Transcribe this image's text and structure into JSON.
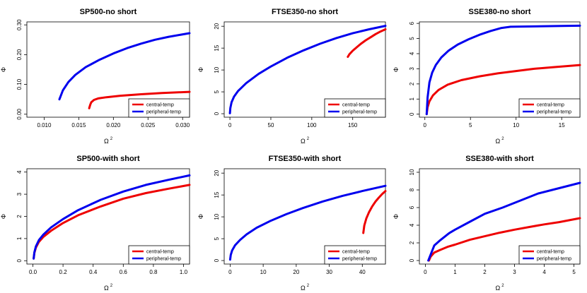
{
  "figure": {
    "rows": 2,
    "cols": 3
  },
  "chart_data": [
    {
      "type": "line",
      "title": "SP500-no short",
      "xlabel": "Ω",
      "xlabel_sup": "2",
      "ylabel": "Φ",
      "xlim": [
        0.0075,
        0.031
      ],
      "ylim": [
        -0.01,
        0.31
      ],
      "xticks": [
        0.01,
        0.015,
        0.02,
        0.025,
        0.03
      ],
      "xtick_labels": [
        "0.010",
        "0.015",
        "0.020",
        "0.025",
        "0.030"
      ],
      "yticks": [
        0.0,
        0.1,
        0.2,
        0.3
      ],
      "ytick_labels": [
        "0.00",
        "0.10",
        "0.20",
        "0.30"
      ],
      "legend": {
        "position": "bottom-right",
        "entries": [
          "central-temp",
          "peripheral-temp"
        ]
      },
      "series": [
        {
          "name": "central-temp",
          "color": "#ee0000",
          "x": [
            0.0165,
            0.01665,
            0.0168,
            0.0172,
            0.0178,
            0.019,
            0.021,
            0.024,
            0.027,
            0.031
          ],
          "y": [
            0.02,
            0.032,
            0.04,
            0.048,
            0.053,
            0.057,
            0.062,
            0.067,
            0.071,
            0.075
          ]
        },
        {
          "name": "peripheral-temp",
          "color": "#0000ee",
          "x": [
            0.0122,
            0.0127,
            0.0135,
            0.0145,
            0.016,
            0.018,
            0.02,
            0.022,
            0.024,
            0.026,
            0.028,
            0.031
          ],
          "y": [
            0.05,
            0.08,
            0.108,
            0.132,
            0.158,
            0.183,
            0.204,
            0.222,
            0.237,
            0.25,
            0.26,
            0.272
          ]
        }
      ]
    },
    {
      "type": "line",
      "title": "FTSE350-no short",
      "xlabel": "Ω",
      "xlabel_sup": "2",
      "ylabel": "Φ",
      "xlim": [
        -7,
        190
      ],
      "ylim": [
        -0.8,
        21
      ],
      "xticks": [
        0,
        50,
        100,
        150
      ],
      "xtick_labels": [
        "0",
        "50",
        "100",
        "150"
      ],
      "yticks": [
        0,
        5,
        10,
        15,
        20
      ],
      "ytick_labels": [
        "0",
        "5",
        "10",
        "15",
        "20"
      ],
      "legend": {
        "position": "bottom-right",
        "entries": [
          "central-temp",
          "peripheral-temp"
        ]
      },
      "series": [
        {
          "name": "central-temp",
          "color": "#ee0000",
          "x": [
            144,
            146,
            150,
            155,
            160,
            166,
            172,
            178,
            184,
            190
          ],
          "y": [
            13.0,
            13.6,
            14.4,
            15.2,
            16.0,
            16.8,
            17.5,
            18.2,
            18.8,
            19.3
          ]
        },
        {
          "name": "peripheral-temp",
          "color": "#0000ee",
          "x": [
            0,
            0.5,
            2,
            5,
            10,
            20,
            35,
            50,
            70,
            90,
            110,
            130,
            150,
            170,
            190
          ],
          "y": [
            0.1,
            1.3,
            2.6,
            3.9,
            5.2,
            7.0,
            9.1,
            10.8,
            12.8,
            14.5,
            16.0,
            17.3,
            18.4,
            19.3,
            20.1
          ]
        }
      ]
    },
    {
      "type": "line",
      "title": "SSE380-no short",
      "xlabel": "Ω",
      "xlabel_sup": "2",
      "ylabel": "Φ",
      "xlim": [
        -0.6,
        17
      ],
      "ylim": [
        -0.2,
        6.1
      ],
      "xticks": [
        0,
        5,
        10,
        15
      ],
      "xtick_labels": [
        "0",
        "5",
        "10",
        "15"
      ],
      "yticks": [
        0,
        1,
        2,
        3,
        4,
        5,
        6
      ],
      "ytick_labels": [
        "0",
        "1",
        "2",
        "3",
        "4",
        "5",
        "6"
      ],
      "legend": {
        "position": "bottom-right",
        "entries": [
          "central-temp",
          "peripheral-temp"
        ]
      },
      "series": [
        {
          "name": "central-temp",
          "color": "#ee0000",
          "x": [
            0.2,
            0.3,
            0.5,
            0.9,
            1.5,
            2.5,
            4,
            6,
            8,
            10,
            12,
            14,
            17
          ],
          "y": [
            0.0,
            0.45,
            0.85,
            1.25,
            1.6,
            1.95,
            2.25,
            2.5,
            2.7,
            2.85,
            3.0,
            3.1,
            3.25
          ]
        },
        {
          "name": "peripheral-temp",
          "color": "#0000ee",
          "x": [
            0.2,
            0.3,
            0.5,
            0.8,
            1.2,
            1.8,
            2.6,
            3.6,
            4.8,
            6.0,
            7.2,
            8.4,
            9.4,
            12,
            15,
            17
          ],
          "y": [
            0.0,
            1.1,
            2.1,
            2.75,
            3.25,
            3.75,
            4.2,
            4.6,
            4.95,
            5.25,
            5.5,
            5.7,
            5.78,
            5.8,
            5.83,
            5.85
          ]
        }
      ]
    },
    {
      "type": "line",
      "title": "SP500-with short",
      "xlabel": "Ω",
      "xlabel_sup": "2",
      "ylabel": "Φ",
      "xlim": [
        -0.04,
        1.04
      ],
      "ylim": [
        -0.15,
        4.15
      ],
      "xticks": [
        0.0,
        0.2,
        0.4,
        0.6,
        0.8,
        1.0
      ],
      "xtick_labels": [
        "0.0",
        "0.2",
        "0.4",
        "0.6",
        "0.8",
        "1.0"
      ],
      "yticks": [
        0,
        1,
        2,
        3,
        4
      ],
      "ytick_labels": [
        "0",
        "1",
        "2",
        "3",
        "4"
      ],
      "legend": {
        "position": "bottom-right",
        "entries": [
          "central-temp",
          "peripheral-temp"
        ]
      },
      "series": [
        {
          "name": "central-temp",
          "color": "#ee0000",
          "x": [
            0.005,
            0.01,
            0.02,
            0.04,
            0.07,
            0.12,
            0.2,
            0.3,
            0.45,
            0.6,
            0.75,
            0.9,
            1.04
          ],
          "y": [
            0.1,
            0.35,
            0.6,
            0.85,
            1.08,
            1.35,
            1.7,
            2.05,
            2.45,
            2.8,
            3.05,
            3.25,
            3.42
          ]
        },
        {
          "name": "peripheral-temp",
          "color": "#0000ee",
          "x": [
            0.005,
            0.01,
            0.02,
            0.04,
            0.07,
            0.12,
            0.2,
            0.3,
            0.45,
            0.6,
            0.75,
            0.9,
            1.04
          ],
          "y": [
            0.1,
            0.38,
            0.65,
            0.93,
            1.18,
            1.5,
            1.88,
            2.28,
            2.75,
            3.12,
            3.42,
            3.65,
            3.85
          ]
        }
      ]
    },
    {
      "type": "line",
      "title": "FTSE350-with short",
      "xlabel": "Ω",
      "xlabel_sup": "2",
      "ylabel": "Φ",
      "xlim": [
        -1.8,
        47
      ],
      "ylim": [
        -0.8,
        21
      ],
      "xticks": [
        0,
        10,
        20,
        30,
        40
      ],
      "xtick_labels": [
        "0",
        "10",
        "20",
        "30",
        "40"
      ],
      "yticks": [
        0,
        5,
        10,
        15,
        20
      ],
      "ytick_labels": [
        "0",
        "5",
        "10",
        "15",
        "20"
      ],
      "legend": {
        "position": "bottom-right",
        "entries": [
          "central-temp",
          "peripheral-temp"
        ]
      },
      "series": [
        {
          "name": "central-temp",
          "color": "#ee0000",
          "x": [
            40.3,
            40.6,
            41.2,
            42,
            43,
            44,
            45,
            46,
            47
          ],
          "y": [
            6.3,
            8.0,
            9.6,
            11.0,
            12.4,
            13.5,
            14.4,
            15.2,
            15.9
          ]
        },
        {
          "name": "peripheral-temp",
          "color": "#0000ee",
          "x": [
            0,
            0.2,
            0.6,
            1.5,
            3,
            5,
            8,
            12,
            17,
            22,
            28,
            34,
            40,
            47
          ],
          "y": [
            0.2,
            1.3,
            2.3,
            3.5,
            4.7,
            6.0,
            7.5,
            9.0,
            10.6,
            12.0,
            13.5,
            14.8,
            15.9,
            17.1
          ]
        }
      ]
    },
    {
      "type": "line",
      "title": "SSE380-with short",
      "xlabel": "Ω",
      "xlabel_sup": "2",
      "ylabel": "Φ",
      "xlim": [
        -0.2,
        5.2
      ],
      "ylim": [
        -0.4,
        10.4
      ],
      "xticks": [
        0,
        1,
        2,
        3,
        4,
        5
      ],
      "xtick_labels": [
        "0",
        "1",
        "2",
        "3",
        "4",
        "5"
      ],
      "yticks": [
        0,
        2,
        4,
        6,
        8,
        10
      ],
      "ytick_labels": [
        "0",
        "2",
        "4",
        "6",
        "8",
        "10"
      ],
      "legend": {
        "position": "bottom-right",
        "entries": [
          "central-temp",
          "peripheral-temp"
        ]
      },
      "series": [
        {
          "name": "central-temp",
          "color": "#ee0000",
          "x": [
            0.12,
            0.18,
            0.3,
            0.5,
            0.75,
            1.0,
            1.5,
            2.0,
            2.5,
            3.0,
            3.5,
            4.0,
            4.5,
            5.2
          ],
          "y": [
            0.0,
            0.45,
            0.9,
            1.2,
            1.55,
            1.8,
            2.35,
            2.75,
            3.15,
            3.5,
            3.8,
            4.1,
            4.35,
            4.8
          ]
        },
        {
          "name": "peripheral-temp",
          "color": "#0000ee",
          "x": [
            0.1,
            0.3,
            0.5,
            0.8,
            1.0,
            1.5,
            2.0,
            2.6,
            3.2,
            3.8,
            4.5,
            5.2
          ],
          "y": [
            0.0,
            1.7,
            2.3,
            3.1,
            3.5,
            4.4,
            5.3,
            6.0,
            6.8,
            7.6,
            8.2,
            8.8
          ]
        }
      ]
    }
  ]
}
